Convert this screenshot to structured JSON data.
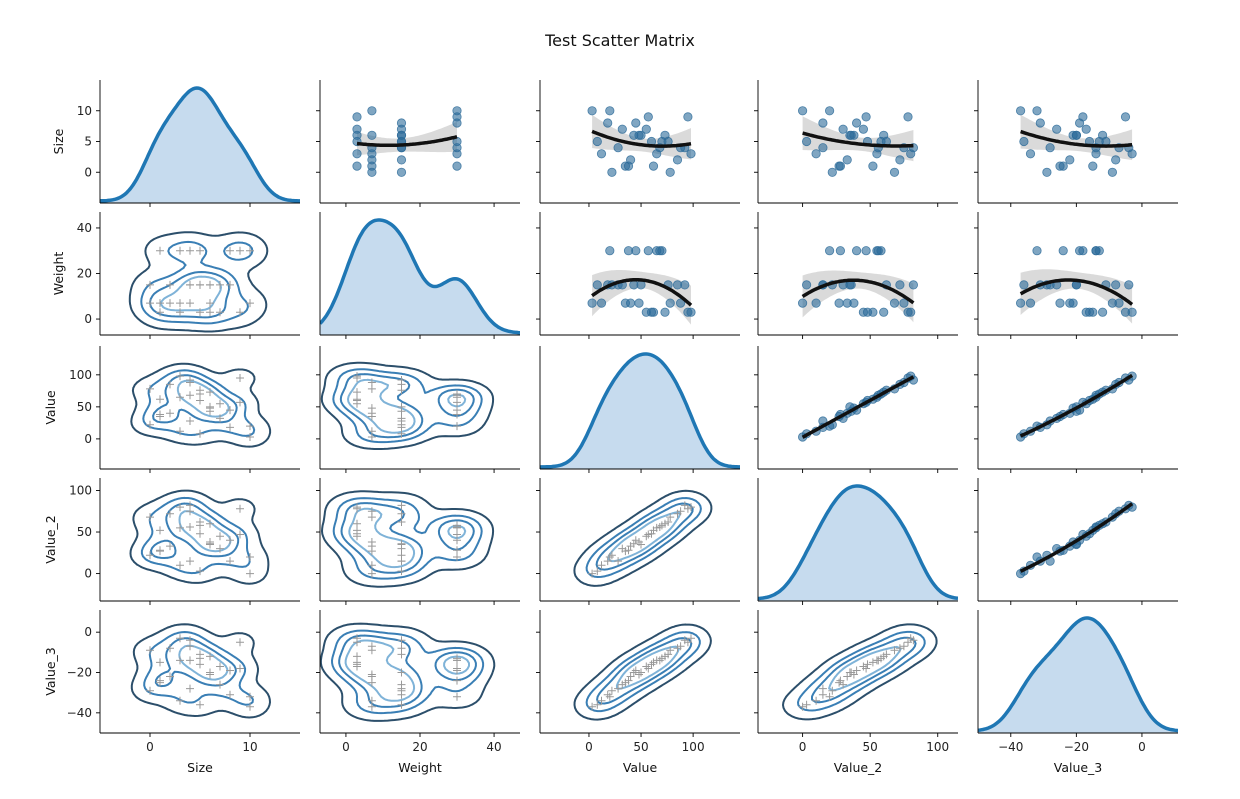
{
  "chart_data": {
    "type": "scatter",
    "title": "Test Scatter Matrix",
    "variables": [
      "Size",
      "Weight",
      "Value",
      "Value_2",
      "Value_3"
    ],
    "diagonal": "kde",
    "upper": "scatter with quadratic regression fit and confidence band",
    "lower": "kde contours with scatter (+ markers)",
    "axes": {
      "Size": {
        "lim": [
          -5,
          15
        ],
        "ticks": [
          0,
          5,
          10
        ],
        "xticks": [
          0,
          10
        ]
      },
      "Weight": {
        "lim": [
          -7,
          47
        ],
        "ticks": [
          0,
          20,
          40
        ]
      },
      "Value": {
        "lim": [
          -47,
          145
        ],
        "ticks": [
          0,
          50,
          100
        ]
      },
      "Value_2": {
        "lim": [
          -33,
          115
        ],
        "ticks": [
          0,
          50,
          100
        ]
      },
      "Value_3": {
        "lim": [
          -50,
          11
        ],
        "ticks": [
          0,
          -20,
          -40
        ],
        "xticks": [
          -40,
          -20,
          0
        ]
      }
    },
    "points": {
      "Size": [
        4,
        10,
        1,
        7,
        3,
        0,
        9,
        5,
        6,
        2,
        8,
        4,
        1,
        6,
        3,
        9,
        0,
        5,
        10,
        2,
        7,
        4,
        5,
        6,
        3,
        8,
        1,
        5,
        4,
        6
      ],
      "Weight": [
        15,
        30,
        7,
        3,
        30,
        7,
        3,
        15,
        15,
        7,
        30,
        15,
        3,
        3,
        7,
        30,
        15,
        30,
        7,
        15,
        15,
        30,
        15,
        7,
        3,
        15,
        30,
        3,
        7,
        15
      ],
      "Value": [
        28,
        20,
        35,
        55,
        65,
        78,
        95,
        8,
        50,
        40,
        45,
        92,
        62,
        73,
        12,
        57,
        22,
        70,
        3,
        85,
        32,
        68,
        76,
        48,
        98,
        18,
        38,
        60,
        88,
        43
      ],
      "Value_2": [
        15,
        20,
        27,
        45,
        55,
        68,
        78,
        3,
        35,
        33,
        40,
        82,
        52,
        60,
        10,
        47,
        22,
        58,
        0,
        72,
        30,
        56,
        62,
        38,
        80,
        15,
        28,
        48,
        75,
        36
      ],
      "Value_3": [
        -28,
        -32,
        -25,
        -17,
        -14,
        -9,
        -5,
        -36,
        -20,
        -22,
        -19,
        -4,
        -15,
        -12,
        -34,
        -18,
        -29,
        -13,
        -37,
        -8,
        -26,
        -14,
        -11,
        -21,
        -3,
        -31,
        -24,
        -16,
        -7,
        -20
      ]
    },
    "series": [
      {
        "values": []
      }
    ],
    "colors": {
      "kde_line": "#1f77b4",
      "kde_fill": "#c6dbee",
      "scatter": "#2c6a99",
      "fit_line": "#111111",
      "ci_band": "#d6d6d6",
      "contour_dark": "#2c4f6b",
      "contour_mid": "#3a7fb5",
      "contour_light": "#7fb3d8",
      "cross": "#999999"
    }
  }
}
